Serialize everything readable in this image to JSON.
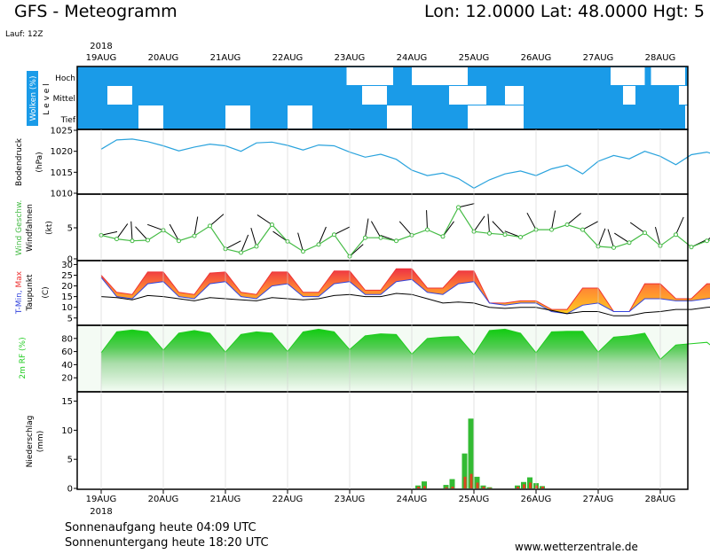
{
  "header": {
    "title": "GFS - Meteogramm",
    "location": "Lon: 12.0000  Lat: 48.0000  Hgt: 5",
    "run": "Lauf: 12Z"
  },
  "footer": {
    "sunrise": "Sonnenaufgang heute 04:09 UTC",
    "sunset": "Sonnenuntergang heute 18:20 UTC",
    "site": "www.wetterzentrale.de"
  },
  "colors": {
    "cloud_sky": "#1a9be8",
    "pressure": "#2aa3dd",
    "wind": "#44bb44",
    "tmax": "#ee3333",
    "tmin": "#3344dd",
    "dewpoint": "#000000",
    "humidity": "#22cc22",
    "precip_rain": "#33bb33",
    "precip_conv": "#dd4422"
  },
  "chart_data": {
    "type": "line",
    "year": "2018",
    "dates": [
      "19AUG",
      "20AUG",
      "21AUG",
      "22AUG",
      "23AUG",
      "24AUG",
      "25AUG",
      "26AUG",
      "27AUG",
      "28AUG"
    ],
    "panels": {
      "clouds": {
        "ylabel": "Wolken (%)",
        "side_label": "L e v e l",
        "levels": [
          "Hoch",
          "Mittel",
          "Tief"
        ],
        "gaps": [
          {
            "level": "Hoch",
            "from": 3.95,
            "to": 4.7
          },
          {
            "level": "Hoch",
            "from": 5.0,
            "to": 5.9
          },
          {
            "level": "Hoch",
            "from": 5.15,
            "to": 5.35
          },
          {
            "level": "Hoch",
            "from": 8.2,
            "to": 8.75
          },
          {
            "level": "Hoch",
            "from": 8.85,
            "to": 9.4
          },
          {
            "level": "Mittel",
            "from": 0.1,
            "to": 0.5
          },
          {
            "level": "Mittel",
            "from": 4.2,
            "to": 4.6
          },
          {
            "level": "Mittel",
            "from": 5.6,
            "to": 6.2
          },
          {
            "level": "Mittel",
            "from": 6.5,
            "to": 6.8
          },
          {
            "level": "Mittel",
            "from": 8.4,
            "to": 8.6
          },
          {
            "level": "Mittel",
            "from": 9.3,
            "to": 9.7
          },
          {
            "level": "Tief",
            "from": 0.6,
            "to": 1.0
          },
          {
            "level": "Tief",
            "from": 2.0,
            "to": 2.4
          },
          {
            "level": "Tief",
            "from": 3.0,
            "to": 3.4
          },
          {
            "level": "Tief",
            "from": 4.6,
            "to": 5.0
          },
          {
            "level": "Tief",
            "from": 5.9,
            "to": 6.8
          },
          {
            "level": "Tief",
            "from": 9.4,
            "to": 10.0
          }
        ]
      },
      "pressure": {
        "ylabel": "Bodendruck (hPa)",
        "yticks": [
          1010,
          1015,
          1020,
          1025
        ],
        "ylim": [
          1010,
          1025
        ],
        "x": [
          0,
          0.25,
          0.5,
          0.75,
          1,
          1.25,
          1.5,
          1.75,
          2,
          2.25,
          2.5,
          2.75,
          3,
          3.25,
          3.5,
          3.75,
          4,
          4.25,
          4.5,
          4.75,
          5,
          5.25,
          5.5,
          5.75,
          6,
          6.25,
          6.5,
          6.75,
          7,
          7.25,
          7.5,
          7.75,
          8,
          8.25,
          8.5,
          8.75,
          9,
          9.25,
          9.5,
          9.75,
          10
        ],
        "values": [
          1020.5,
          1022.7,
          1022.9,
          1022.3,
          1021.3,
          1020.1,
          1021.0,
          1021.7,
          1021.3,
          1020.0,
          1022.0,
          1022.2,
          1021.4,
          1020.3,
          1021.5,
          1021.3,
          1019.8,
          1018.6,
          1019.3,
          1018.1,
          1015.5,
          1014.2,
          1014.8,
          1013.5,
          1011.2,
          1013.2,
          1014.6,
          1015.3,
          1014.2,
          1015.8,
          1016.7,
          1014.6,
          1017.6,
          1019.0,
          1018.2,
          1020.0,
          1018.8,
          1016.8,
          1019.2,
          1019.8,
          1018.6
        ]
      },
      "wind": {
        "ylabel": "Wind Geschw. (kt)",
        "sublabel": "Windfahnen",
        "yticks": [
          0,
          5
        ],
        "ylim": [
          0,
          10
        ],
        "x": [
          0,
          0.25,
          0.5,
          0.75,
          1,
          1.25,
          1.5,
          1.75,
          2,
          2.25,
          2.5,
          2.75,
          3,
          3.25,
          3.5,
          3.75,
          4,
          4.25,
          4.5,
          4.75,
          5,
          5.25,
          5.5,
          5.75,
          6,
          6.25,
          6.5,
          6.75,
          7,
          7.25,
          7.5,
          7.75,
          8,
          8.25,
          8.5,
          8.75,
          9,
          9.25,
          9.5,
          9.75,
          10
        ],
        "values": [
          3.8,
          3.2,
          2.9,
          3.0,
          4.6,
          2.9,
          3.7,
          5.3,
          1.6,
          1.0,
          2.0,
          5.5,
          2.8,
          1.2,
          2.3,
          3.9,
          0.4,
          3.4,
          3.4,
          2.9,
          3.8,
          4.7,
          3.6,
          8.3,
          4.4,
          4.1,
          3.9,
          3.5,
          4.7,
          4.7,
          5.5,
          4.7,
          2.0,
          1.8,
          2.6,
          4.2,
          2.1,
          3.9,
          1.9,
          2.9,
          3.4
        ]
      },
      "temperature": {
        "ylabel_parts": [
          "T-Min,",
          "Max"
        ],
        "sublabel": "Taupunkt",
        "unit": "(C)",
        "yticks": [
          5,
          10,
          15,
          20,
          25,
          30
        ],
        "ylim": [
          2,
          31
        ],
        "x": [
          0,
          0.25,
          0.5,
          0.75,
          1,
          1.25,
          1.5,
          1.75,
          2,
          2.25,
          2.5,
          2.75,
          3,
          3.25,
          3.5,
          3.75,
          4,
          4.25,
          4.5,
          4.75,
          5,
          5.25,
          5.5,
          5.75,
          6,
          6.25,
          6.5,
          6.75,
          7,
          7.25,
          7.5,
          7.75,
          8,
          8.25,
          8.5,
          8.75,
          9,
          9.25,
          9.5,
          9.75,
          10
        ],
        "tmax": [
          25,
          17,
          16,
          26.5,
          26.5,
          17,
          16,
          26,
          26.5,
          17,
          16,
          26.5,
          26.5,
          17,
          17,
          27,
          27,
          18,
          18,
          28,
          28,
          19,
          19,
          27,
          27,
          12,
          12,
          13,
          13,
          9,
          9,
          19,
          19,
          8,
          8,
          21,
          21,
          14,
          14,
          21,
          21
        ],
        "tmin": [
          24,
          15,
          14,
          21,
          22,
          15,
          14,
          21,
          22,
          15,
          14,
          20,
          21,
          15,
          15,
          21,
          22,
          16,
          16,
          22,
          23,
          17,
          16,
          21,
          22,
          12,
          11,
          12,
          12,
          8,
          7,
          11,
          12,
          8,
          8,
          14,
          14,
          13,
          13,
          14,
          15
        ],
        "dewpoint": [
          15,
          14.5,
          13.5,
          15.5,
          15,
          14,
          13,
          14.5,
          14,
          13.5,
          13,
          14.5,
          14,
          13.5,
          14,
          15.5,
          16,
          15,
          15,
          16.5,
          16,
          14,
          12,
          12.5,
          12,
          10,
          9.5,
          10,
          10,
          8.5,
          7,
          8,
          8,
          6,
          6,
          7.5,
          8,
          9,
          9,
          10,
          10.5
        ]
      },
      "humidity": {
        "ylabel": "2m RF (%)",
        "yticks": [
          20,
          40,
          60,
          80
        ],
        "ylim": [
          0,
          100
        ],
        "x": [
          0,
          0.25,
          0.5,
          0.75,
          1,
          1.25,
          1.5,
          1.75,
          2,
          2.25,
          2.5,
          2.75,
          3,
          3.25,
          3.5,
          3.75,
          4,
          4.25,
          4.5,
          4.75,
          5,
          5.25,
          5.5,
          5.75,
          6,
          6.25,
          6.5,
          6.75,
          7,
          7.25,
          7.5,
          7.75,
          8,
          8.25,
          8.5,
          8.75,
          9,
          9.25,
          9.5,
          9.75,
          10
        ],
        "values": [
          58,
          90,
          93,
          90,
          62,
          88,
          92,
          88,
          59,
          86,
          90,
          88,
          60,
          90,
          94,
          90,
          63,
          84,
          87,
          86,
          56,
          80,
          82,
          83,
          55,
          92,
          94,
          88,
          58,
          90,
          91,
          91,
          59,
          82,
          84,
          88,
          48,
          70,
          72,
          74,
          56
        ]
      },
      "precip": {
        "ylabel": "Niederschlag (mm)",
        "yticks": [
          0,
          5,
          10,
          15
        ],
        "ylim": [
          0,
          16
        ],
        "x": [
          5.1,
          5.2,
          5.55,
          5.65,
          5.85,
          5.95,
          6.05,
          6.15,
          6.25,
          6.7,
          6.8,
          6.9,
          7.0,
          7.1
        ],
        "rain": [
          0.5,
          1.2,
          0.6,
          1.6,
          6.0,
          12.0,
          2.0,
          0.5,
          0.2,
          0.5,
          1.1,
          1.9,
          0.9,
          0.4
        ],
        "convective": [
          0.3,
          0.4,
          0.2,
          0.3,
          2.0,
          2.5,
          1.0,
          0.3,
          0.1,
          0.3,
          0.7,
          1.0,
          0.5,
          0.3
        ]
      }
    }
  }
}
